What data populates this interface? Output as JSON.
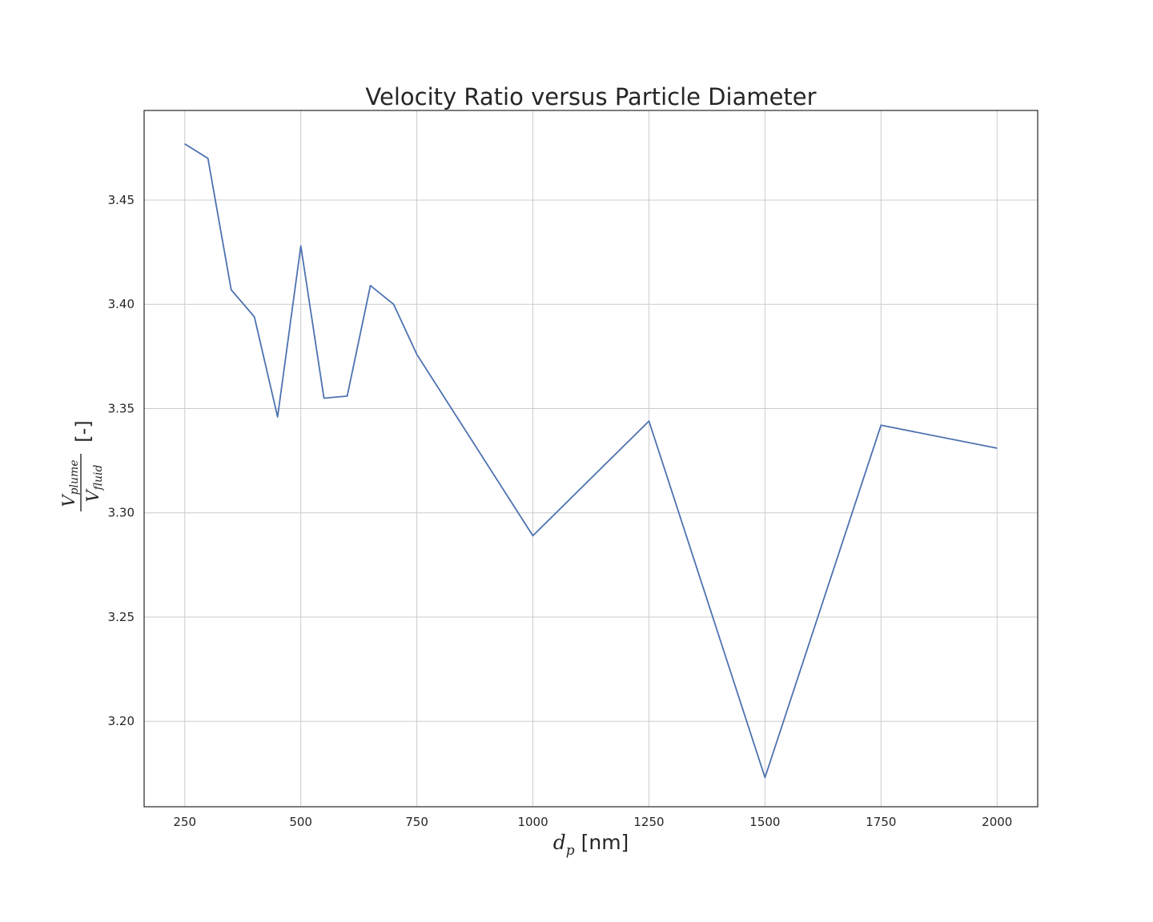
{
  "chart_data": {
    "type": "line",
    "title": "Velocity Ratio versus Particle Diameter",
    "xlabel": {
      "main": "d",
      "sub": "p",
      "unit": "[nm]"
    },
    "ylabel": {
      "num": "V",
      "num_sub": "plume",
      "den": "V",
      "den_sub": "fluid",
      "unit": "[-]"
    },
    "xlim": [
      162.5,
      2087.5
    ],
    "ylim": [
      3.159,
      3.493
    ],
    "xticks": [
      250,
      500,
      750,
      1000,
      1250,
      1500,
      1750,
      2000
    ],
    "xtick_labels": [
      "250",
      "500",
      "750",
      "1000",
      "1250",
      "1500",
      "1750",
      "2000"
    ],
    "yticks": [
      3.2,
      3.25,
      3.3,
      3.35,
      3.4,
      3.45
    ],
    "ytick_labels": [
      "3.20",
      "3.25",
      "3.30",
      "3.35",
      "3.40",
      "3.45"
    ],
    "grid": true,
    "color": "#4c72b0",
    "series": [
      {
        "x": [
          250,
          300,
          350,
          400,
          450,
          500,
          550,
          600,
          650,
          700,
          750,
          1000,
          1250,
          1500,
          1750,
          2000
        ],
        "y": [
          3.477,
          3.47,
          3.407,
          3.394,
          3.346,
          3.428,
          3.355,
          3.356,
          3.409,
          3.4,
          3.376,
          3.289,
          3.344,
          3.173,
          3.342,
          3.331
        ]
      }
    ]
  }
}
